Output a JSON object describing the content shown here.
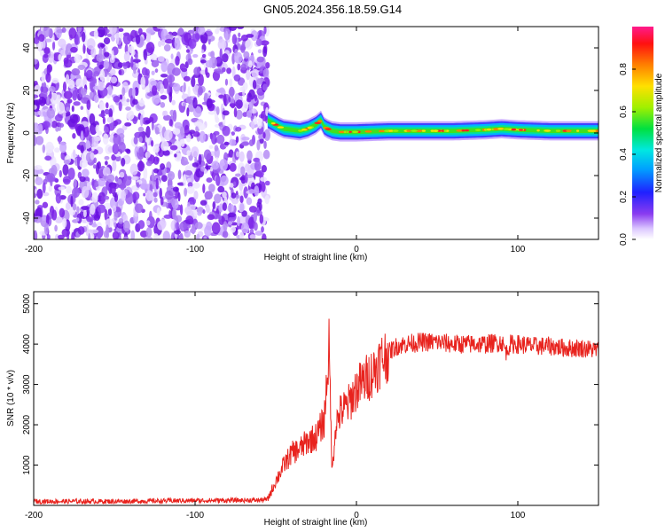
{
  "title": "GN05.2024.356.18.59.G14",
  "chart_data": [
    {
      "type": "heatmap",
      "xlabel": "Height of straight line (km)",
      "ylabel": "Frequency (Hz)",
      "xlim": [
        -200,
        150
      ],
      "ylim": [
        -50,
        50
      ],
      "xticks": [
        -200,
        -100,
        0,
        100
      ],
      "yticks": [
        -40,
        -20,
        0,
        20,
        40
      ],
      "noise_region_x": [
        -200,
        -55
      ],
      "signal_x": [
        -55,
        -48,
        -45,
        -40,
        -35,
        -30,
        -25,
        -22,
        -20,
        -18,
        -15,
        -10,
        -5,
        0,
        20,
        40,
        60,
        80,
        90,
        100,
        120,
        150
      ],
      "signal_freq": [
        6,
        3,
        2,
        1.5,
        1,
        2,
        4,
        6,
        3,
        2,
        1,
        0.5,
        0.5,
        0.5,
        1,
        1,
        1,
        1.5,
        2,
        1.5,
        1,
        1
      ],
      "colorbar": {
        "label": "Normalized spectral amplitude",
        "range": [
          0.0,
          1.0
        ],
        "ticks": [
          "0.0",
          "0.2",
          "0.4",
          "0.6",
          "0.8"
        ]
      }
    },
    {
      "type": "line",
      "xlabel": "Height of straight line (km)",
      "ylabel": "SNR (10 * v/v)",
      "xlim": [
        -200,
        150
      ],
      "ylim": [
        0,
        5300
      ],
      "xticks": [
        -200,
        -100,
        0,
        100
      ],
      "yticks": [
        1000,
        2000,
        3000,
        4000,
        5000
      ],
      "color": "#e8231e",
      "series": [
        {
          "x": [
            -200,
            -150,
            -100,
            -60,
            -55,
            -50,
            -45,
            -40,
            -35,
            -30,
            -25,
            -20,
            -17,
            -15,
            -13,
            -10,
            -5,
            0,
            5,
            10,
            15,
            20,
            25,
            30,
            40,
            50,
            60,
            70,
            80,
            90,
            93,
            95,
            100,
            110,
            120,
            130,
            140,
            150
          ],
          "y": [
            100,
            100,
            120,
            130,
            150,
            600,
            1000,
            1300,
            1400,
            1600,
            1700,
            2100,
            3900,
            800,
            2000,
            2300,
            2500,
            2900,
            3100,
            3300,
            3600,
            3800,
            3950,
            4000,
            4050,
            4050,
            4000,
            4000,
            4000,
            4050,
            3800,
            4000,
            4000,
            3950,
            3950,
            3900,
            3900,
            3850
          ]
        }
      ]
    }
  ]
}
